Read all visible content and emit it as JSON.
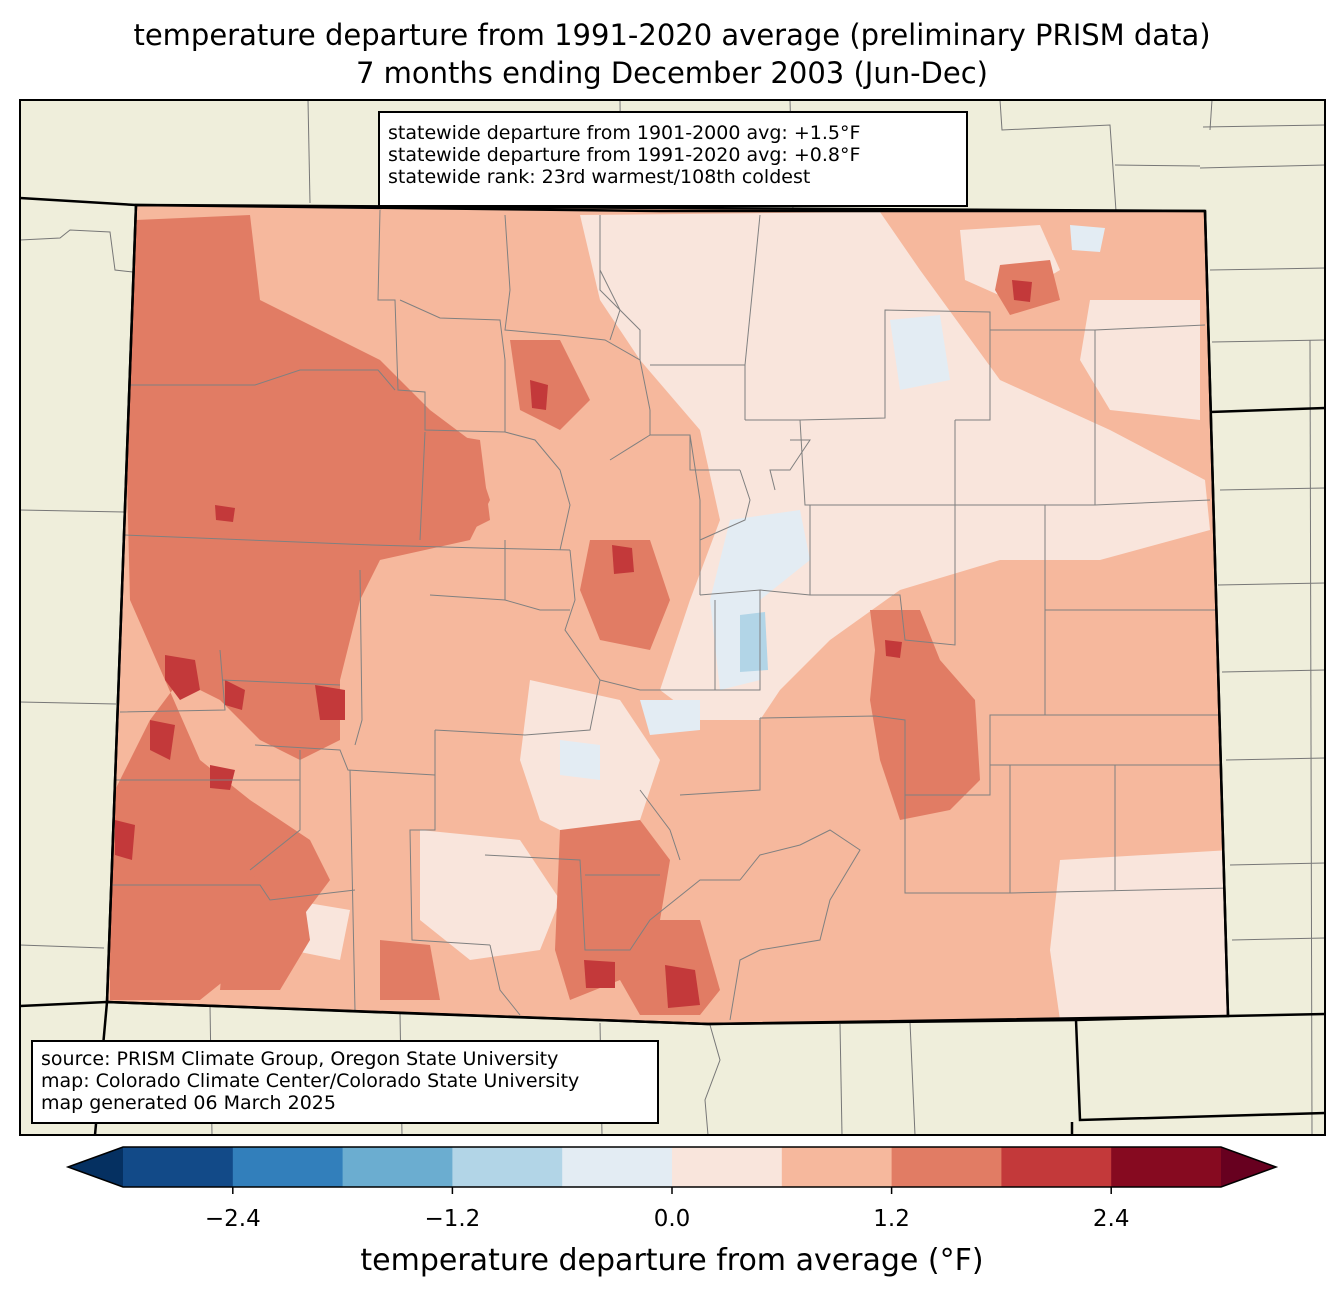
{
  "title": {
    "line1": "temperature departure from 1991-2020 average (preliminary PRISM data)",
    "line2": "7 months ending December 2003 (Jun-Dec)"
  },
  "stats": {
    "line1": "statewide departure from 1901-2000 avg: +1.5°F",
    "line2": "statewide departure from 1991-2020 avg: +0.8°F",
    "line3": "statewide rank: 23rd warmest/108th coldest"
  },
  "source": {
    "line1": "source: PRISM Climate Group, Oregon State University",
    "line2": "map: Colorado Climate Center/Colorado State University",
    "line3": "map generated 06 March 2025"
  },
  "colorbar": {
    "label": "temperature departure from average (°F)",
    "ticks": [
      "−2.4",
      "−1.2",
      "0.0",
      "1.2",
      "2.4"
    ],
    "bins": [
      -3.0,
      -2.4,
      -1.8,
      -1.2,
      -0.6,
      0.0,
      0.6,
      1.2,
      1.8,
      2.4,
      3.0
    ],
    "colors": [
      "#124a88",
      "#327fbb",
      "#6badd0",
      "#b2d5e7",
      "#e3ecf3",
      "#f9e5dc",
      "#f6b89d",
      "#e17c64",
      "#c3393a",
      "#860a20"
    ],
    "under_color": "#053061",
    "over_color": "#67001f"
  },
  "colors": {
    "land": "#efeedb",
    "background_map": "#f6b89d"
  }
}
